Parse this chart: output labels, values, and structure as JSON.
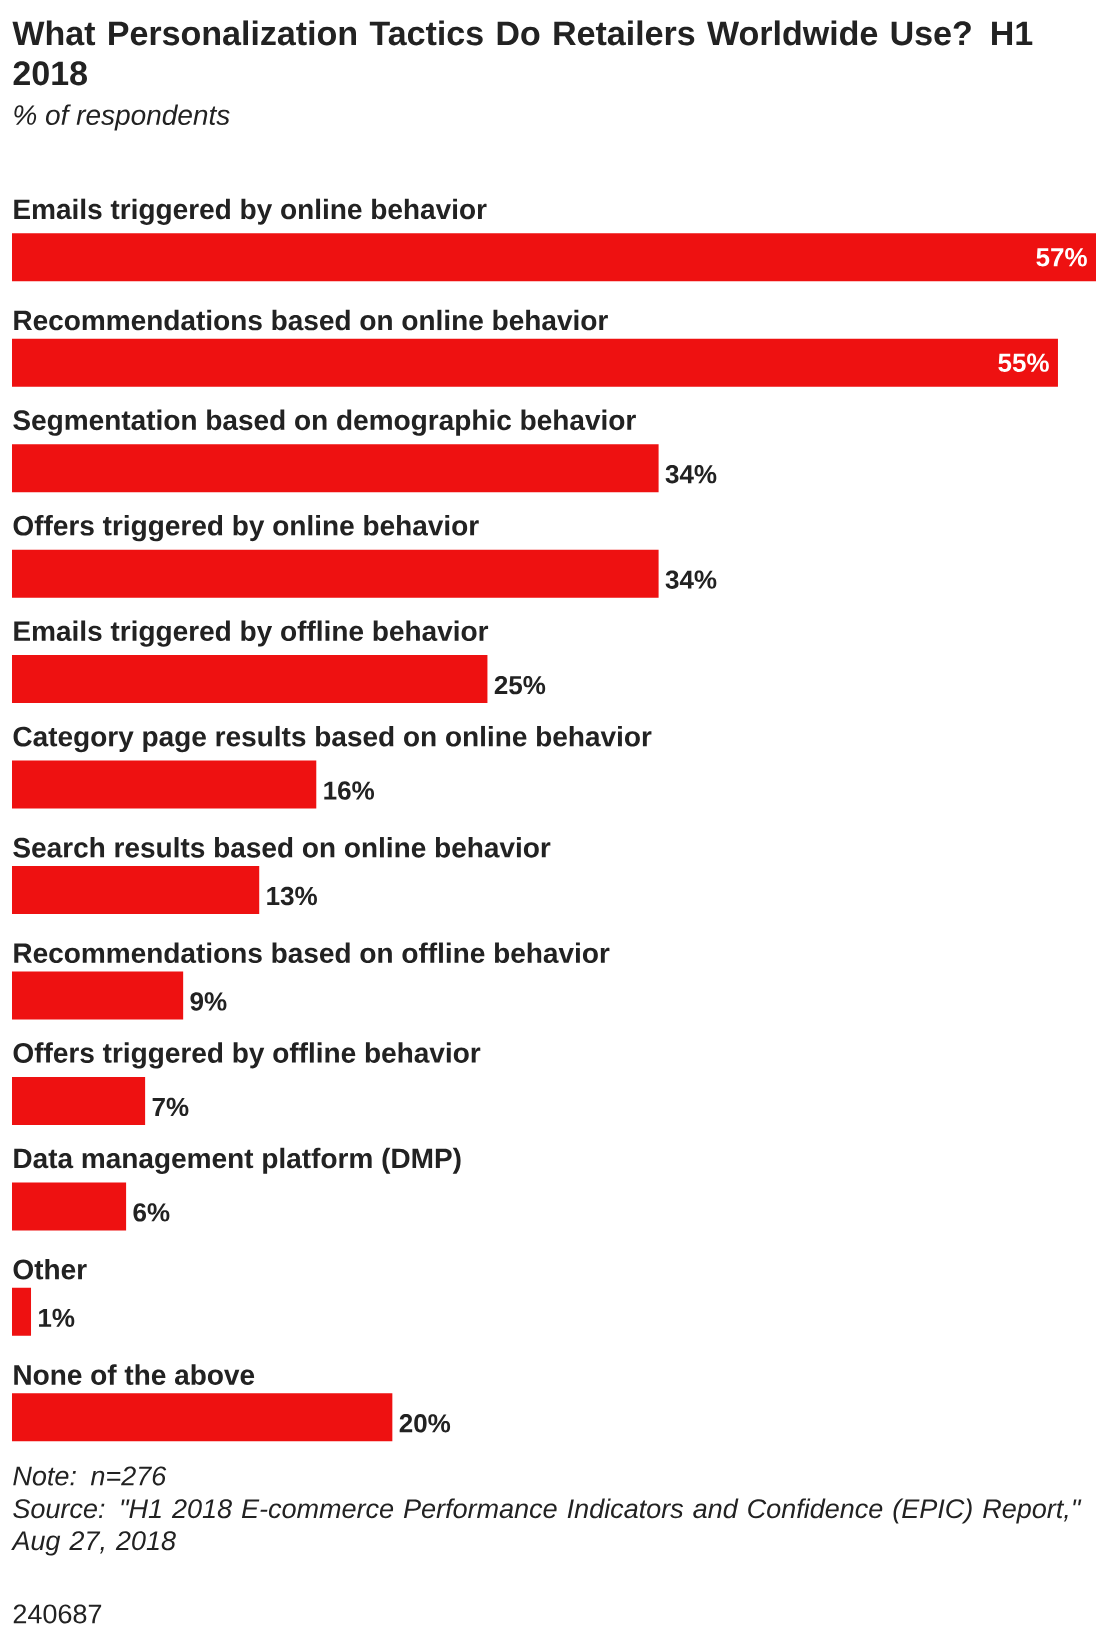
{
  "chart_data": {
    "type": "bar",
    "orientation": "horizontal",
    "title": "What Personalization Tactics Do Retailers Worldwide Use? H1 2018",
    "subtitle": "% of respondents",
    "categories": [
      "Emails triggered by online behavior",
      "Recommendations based on online behavior",
      "Segmentation based on demographic behavior",
      "Offers triggered by online behavior",
      "Emails triggered by offline behavior",
      "Category page results based on online behavior",
      "Search results based on online behavior",
      "Recommendations based on offline behavior",
      "Offers triggered by offline behavior",
      "Data management platform (DMP)",
      "Other",
      "None of the above"
    ],
    "values": [
      57,
      55,
      34,
      34,
      25,
      16,
      13,
      9,
      7,
      6,
      1,
      20
    ],
    "value_labels": [
      "57%",
      "55%",
      "34%",
      "34%",
      "25%",
      "16%",
      "13%",
      "9%",
      "7%",
      "6%",
      "1%",
      "20%"
    ],
    "color": "#ee1111",
    "annotations": [
      "Note: n=276",
      "Source: \"H1 2018 E-commerce Performance Indicators and Confidence (EPIC) Report,\" Aug 27, 2018",
      "240687"
    ]
  }
}
